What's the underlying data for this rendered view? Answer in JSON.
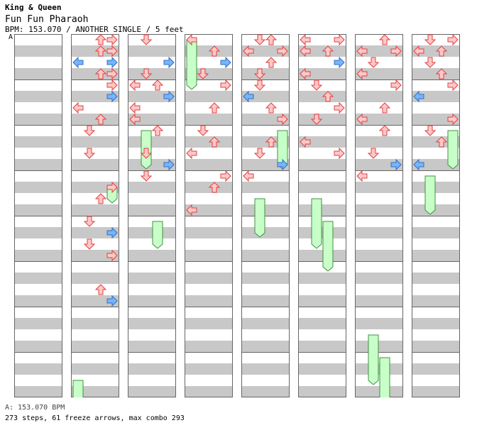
{
  "header": {
    "artist": "King & Queen",
    "title": "Fun Fun Pharaoh",
    "info": "BPM: 153.070 / ANOTHER SINGLE / 5 feet",
    "marker": "A"
  },
  "footer": {
    "bpm_line": "A: 153.070 BPM",
    "stats_line": "273 steps, 61 freeze arrows, max combo 293"
  },
  "colors": {
    "red_arrow_fill": "#ffc8c8",
    "red_arrow_stroke": "#e04040",
    "blue_arrow_fill": "#78b4ff",
    "freeze_fill": "#c8ffc8",
    "freeze_stroke": "#409040",
    "stripe": "#c8c8c8"
  },
  "chart": {
    "columns": 8,
    "measures_per_column": 8,
    "lanes": [
      "left",
      "down",
      "up",
      "right"
    ],
    "columns_data": [
      {
        "arrows": [],
        "freezes": []
      },
      {
        "arrows": [
          [
            0,
            2
          ],
          [
            0,
            3
          ],
          [
            1,
            2
          ],
          [
            1,
            3
          ],
          [
            2,
            0
          ],
          [
            2,
            3
          ],
          [
            3,
            2
          ],
          [
            3,
            3
          ],
          [
            4,
            3
          ],
          [
            5,
            3
          ],
          [
            6,
            0
          ],
          [
            7,
            2
          ],
          [
            8,
            1
          ],
          [
            10,
            1
          ],
          [
            13,
            3
          ],
          [
            14,
            2
          ],
          [
            16,
            1
          ],
          [
            17,
            3
          ],
          [
            18,
            1
          ],
          [
            19,
            3
          ],
          [
            22,
            2
          ],
          [
            23,
            3
          ]
        ],
        "freezes": [
          [
            3,
            13,
            14
          ],
          [
            0,
            30,
            32
          ]
        ]
      },
      {
        "arrows": [
          [
            0,
            1
          ],
          [
            2,
            3
          ],
          [
            3,
            1
          ],
          [
            4,
            0
          ],
          [
            4,
            2
          ],
          [
            5,
            3
          ],
          [
            6,
            0
          ],
          [
            7,
            0
          ],
          [
            8,
            2
          ],
          [
            10,
            1
          ],
          [
            11,
            3
          ],
          [
            12,
            1
          ]
        ],
        "freezes": [
          [
            1,
            8,
            11
          ],
          [
            2,
            16,
            18
          ]
        ]
      },
      {
        "arrows": [
          [
            0,
            0
          ],
          [
            1,
            2
          ],
          [
            2,
            3
          ],
          [
            3,
            1
          ],
          [
            4,
            3
          ],
          [
            6,
            2
          ],
          [
            8,
            1
          ],
          [
            9,
            2
          ],
          [
            10,
            0
          ],
          [
            12,
            3
          ],
          [
            13,
            2
          ],
          [
            15,
            0
          ]
        ],
        "freezes": [
          [
            0,
            0,
            4
          ]
        ]
      },
      {
        "arrows": [
          [
            0,
            1
          ],
          [
            0,
            2
          ],
          [
            1,
            0
          ],
          [
            1,
            3
          ],
          [
            2,
            2
          ],
          [
            3,
            1
          ],
          [
            4,
            1
          ],
          [
            5,
            0
          ],
          [
            6,
            2
          ],
          [
            7,
            3
          ],
          [
            9,
            2
          ],
          [
            10,
            1
          ],
          [
            11,
            3
          ],
          [
            12,
            0
          ]
        ],
        "freezes": [
          [
            3,
            8,
            11
          ],
          [
            1,
            14,
            17
          ]
        ]
      },
      {
        "arrows": [
          [
            0,
            0
          ],
          [
            0,
            3
          ],
          [
            1,
            0
          ],
          [
            1,
            2
          ],
          [
            2,
            3
          ],
          [
            3,
            0
          ],
          [
            4,
            1
          ],
          [
            5,
            2
          ],
          [
            6,
            3
          ],
          [
            7,
            1
          ],
          [
            9,
            0
          ],
          [
            10,
            3
          ]
        ],
        "freezes": [
          [
            1,
            14,
            18
          ],
          [
            2,
            16,
            20
          ]
        ]
      },
      {
        "arrows": [
          [
            0,
            2
          ],
          [
            1,
            0
          ],
          [
            1,
            3
          ],
          [
            2,
            1
          ],
          [
            3,
            0
          ],
          [
            4,
            3
          ],
          [
            6,
            2
          ],
          [
            7,
            0
          ],
          [
            8,
            2
          ],
          [
            10,
            1
          ],
          [
            11,
            3
          ],
          [
            12,
            0
          ]
        ],
        "freezes": [
          [
            1,
            26,
            30
          ],
          [
            2,
            28,
            32
          ]
        ]
      },
      {
        "arrows": [
          [
            0,
            1
          ],
          [
            0,
            3
          ],
          [
            1,
            2
          ],
          [
            1,
            0
          ],
          [
            2,
            1
          ],
          [
            3,
            2
          ],
          [
            4,
            3
          ],
          [
            5,
            0
          ],
          [
            7,
            3
          ],
          [
            8,
            1
          ],
          [
            9,
            2
          ],
          [
            11,
            0
          ]
        ],
        "freezes": [
          [
            3,
            8,
            11
          ],
          [
            1,
            12,
            15
          ]
        ]
      }
    ]
  }
}
